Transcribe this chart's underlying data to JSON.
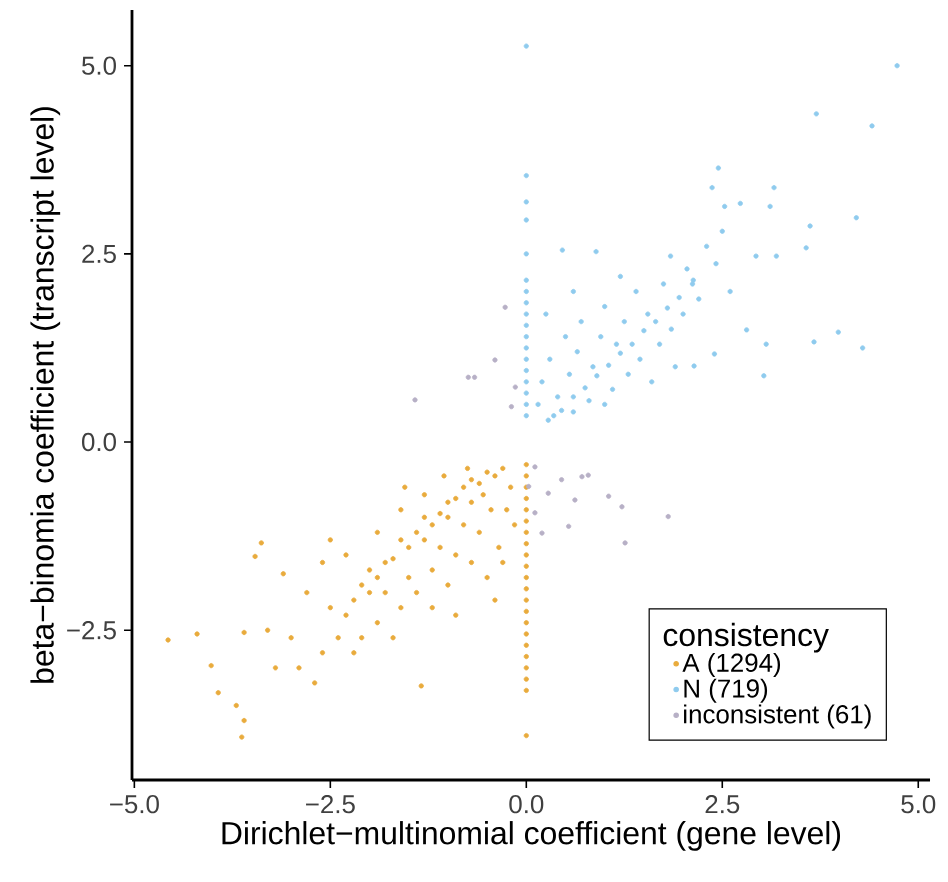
{
  "chart_data": {
    "type": "scatter",
    "xlabel": "Dirichlet−multinomial coefficient (gene level)",
    "ylabel": "beta−binomia coefficient (transcript level)",
    "legend_title": "consistency",
    "legend": "bottom right",
    "marker": "circle",
    "xlim": [
      -5.03,
      5.15
    ],
    "ylim": [
      -4.49,
      5.74
    ],
    "xticks": [
      {
        "value": -5,
        "label": "−5.0"
      },
      {
        "value": -2.5,
        "label": "−2.5"
      },
      {
        "value": 0,
        "label": "0.0"
      },
      {
        "value": 2.5,
        "label": "2.5"
      },
      {
        "value": 5,
        "label": "5.0"
      }
    ],
    "yticks": [
      {
        "value": -2.5,
        "label": "−2.5"
      },
      {
        "value": 0,
        "label": "0.0"
      },
      {
        "value": 2.5,
        "label": "2.5"
      },
      {
        "value": 5,
        "label": "5.0"
      }
    ],
    "series": [
      {
        "name": "A    (1294)",
        "color": "#e9ab3c",
        "x": [
          0,
          0,
          0,
          0,
          0,
          0,
          0,
          0,
          0,
          0,
          0,
          0,
          0,
          0,
          0,
          0,
          0,
          0,
          0,
          0,
          0,
          0,
          -0.3,
          -0.4,
          -0.5,
          -0.6,
          -0.7,
          -0.8,
          -0.55,
          -0.45,
          -0.9,
          -1.0,
          -1.0,
          -1.1,
          -1.2,
          -1.3,
          -1.3,
          -1.4,
          -1.5,
          -1.6,
          -1.7,
          -1.8,
          -1.9,
          -2.0,
          -2.0,
          -2.1,
          -2.2,
          -0.7,
          -0.8,
          -0.6,
          -0.35,
          -0.25,
          -0.2,
          -0.15,
          -1.1,
          -0.9,
          -1.2,
          -1.5,
          -1.0,
          -0.7,
          -0.5,
          -1.4,
          -1.6,
          -1.8,
          -1.9,
          -2.1,
          -2.3,
          -2.4,
          -2.5,
          -2.6,
          -2.7,
          -2.9,
          -3.0,
          -3.1,
          -3.2,
          -3.3,
          -3.46,
          -3.6,
          -3.6,
          -3.63,
          -3.7,
          -3.93,
          -4.02,
          -4.2,
          -4.57,
          -1.34,
          -2.3,
          -2.6,
          -1.9,
          -1.6,
          -1.3,
          -1.55,
          -1.05,
          -0.75,
          -2.8,
          -2.2,
          -1.7,
          -0.4,
          -0.9,
          -1.2,
          -0.3,
          -2.5,
          -3.38
        ],
        "values": [
          -0.3,
          -0.45,
          -0.6,
          -0.75,
          -0.9,
          -1.05,
          -1.2,
          -1.35,
          -1.5,
          -1.65,
          -1.8,
          -1.95,
          -2.1,
          -2.25,
          -2.4,
          -2.55,
          -2.7,
          -2.85,
          -3.0,
          -3.15,
          -3.3,
          -3.9,
          -0.35,
          -0.45,
          -0.4,
          -0.55,
          -0.5,
          -0.6,
          -0.7,
          -0.9,
          -0.75,
          -0.8,
          -1.0,
          -0.95,
          -1.1,
          -1.0,
          -1.3,
          -1.2,
          -1.4,
          -1.3,
          -1.55,
          -1.6,
          -1.8,
          -1.7,
          -2.0,
          -1.9,
          -2.1,
          -0.8,
          -1.1,
          -1.2,
          -1.4,
          -0.9,
          -0.6,
          -1.1,
          -1.4,
          -1.5,
          -1.7,
          -1.8,
          -1.9,
          -1.6,
          -1.8,
          -2.0,
          -2.2,
          -2.0,
          -2.4,
          -2.6,
          -2.3,
          -2.6,
          -2.2,
          -2.8,
          -3.2,
          -3.0,
          -2.6,
          -1.75,
          -3.0,
          -2.5,
          -1.52,
          -2.53,
          -3.7,
          -3.92,
          -3.5,
          -3.33,
          -2.97,
          -2.55,
          -2.63,
          -3.24,
          -1.5,
          -1.6,
          -1.2,
          -0.9,
          -0.7,
          -0.6,
          -0.45,
          -0.35,
          -2.0,
          -2.8,
          -2.6,
          -2.1,
          -2.3,
          -2.2,
          -1.6,
          -1.3,
          -1.34
        ]
      },
      {
        "name": "N    (719)",
        "color": "#8fcbee",
        "x": [
          0,
          0,
          0,
          0,
          0,
          0,
          0,
          0,
          0,
          0,
          0,
          0,
          0,
          0,
          0,
          0,
          0,
          0,
          0.28,
          0.45,
          0.6,
          0.75,
          0.9,
          1.05,
          1.2,
          1.35,
          1.5,
          1.65,
          1.8,
          1.95,
          2.13,
          0.15,
          0.2,
          0.3,
          0.4,
          0.5,
          0.55,
          0.65,
          0.7,
          0.8,
          0.85,
          0.95,
          1.0,
          1.1,
          1.15,
          1.25,
          1.3,
          1.4,
          1.45,
          1.55,
          1.6,
          1.7,
          1.75,
          1.85,
          1.9,
          2.0,
          2.05,
          2.14,
          2.2,
          2.3,
          2.4,
          2.42,
          0.46,
          0.89,
          1.84,
          2.12,
          2.37,
          2.45,
          2.53,
          2.73,
          2.81,
          2.93,
          3.03,
          3.06,
          3.11,
          3.16,
          3.19,
          3.57,
          3.62,
          3.67,
          3.98,
          4.21,
          4.29,
          3.7,
          4.41,
          4.73,
          0.35,
          0.6,
          1.0,
          0.25,
          0.6,
          1.2,
          2.6,
          2.5
        ],
        "values": [
          0.35,
          0.5,
          0.65,
          0.8,
          0.95,
          1.1,
          1.25,
          1.4,
          1.55,
          1.7,
          1.85,
          2.0,
          2.15,
          2.5,
          2.95,
          3.19,
          3.54,
          5.26,
          0.29,
          0.42,
          0.6,
          0.72,
          0.88,
          1.02,
          1.18,
          1.3,
          1.48,
          1.6,
          1.78,
          1.92,
          2.15,
          0.5,
          0.8,
          1.1,
          0.6,
          1.4,
          0.9,
          1.2,
          1.6,
          0.55,
          1.0,
          1.4,
          1.8,
          0.7,
          1.3,
          1.6,
          0.9,
          2.0,
          1.1,
          1.7,
          0.8,
          1.3,
          2.1,
          1.5,
          1.0,
          1.7,
          2.3,
          1.01,
          1.9,
          2.6,
          1.17,
          2.37,
          2.55,
          2.53,
          2.47,
          2.1,
          3.38,
          3.64,
          3.13,
          3.17,
          1.49,
          2.47,
          0.88,
          1.3,
          3.13,
          3.38,
          2.47,
          2.58,
          2.87,
          1.33,
          1.46,
          2.98,
          1.25,
          4.36,
          4.2,
          5.0,
          0.35,
          0.4,
          0.5,
          1.7,
          2.0,
          2.2,
          2.0,
          2.8
        ]
      },
      {
        "name": "inconsistent (61)",
        "color": "#b7b0c6",
        "x": [
          -0.74,
          -0.66,
          -0.27,
          -0.4,
          -1.42,
          -0.14,
          -0.19,
          0.11,
          0.28,
          0.45,
          0.71,
          0.79,
          0.62,
          1.05,
          1.22,
          1.26,
          1.81,
          0.2,
          0.11,
          0.54,
          0.03
        ],
        "values": [
          0.86,
          0.86,
          1.79,
          1.09,
          0.56,
          0.73,
          0.47,
          -0.33,
          -0.68,
          -0.5,
          -0.46,
          -0.44,
          -0.77,
          -0.72,
          -0.86,
          -1.34,
          -0.99,
          -1.21,
          -0.94,
          -1.12,
          -0.59
        ]
      }
    ]
  }
}
